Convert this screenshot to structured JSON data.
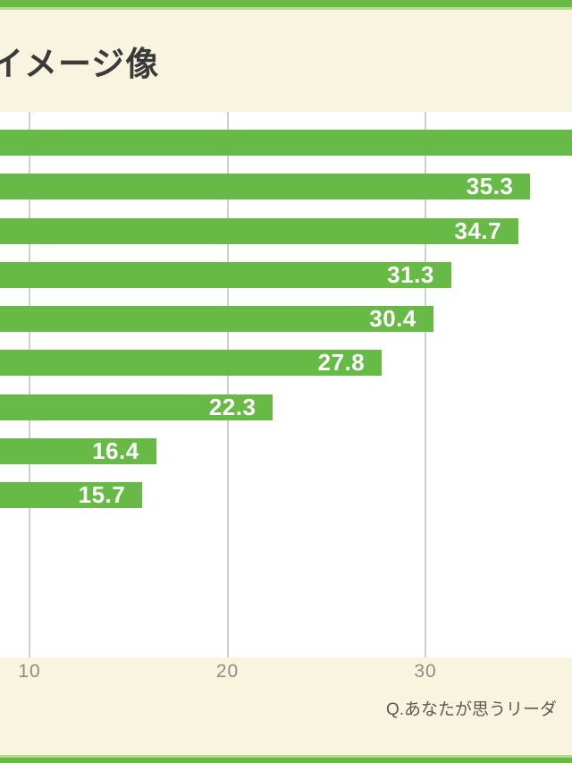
{
  "page": {
    "title": "イメージ像",
    "caption": "Q.あなたが思うリーダ",
    "colors": {
      "green": "#66ba45",
      "light_green": "#b7d98b",
      "cream": "#f9f4df",
      "plot_bg": "#ffffff",
      "grid": "#cfcfcf",
      "title_text": "#3a3a3a",
      "tick_text": "#8e8d86",
      "caption_text": "#5c5b54",
      "bar_label": "#ffffff"
    }
  },
  "chart_data": {
    "type": "bar",
    "orientation": "horizontal",
    "title": "イメージ像",
    "caption": "Q.あなたが思うリーダ",
    "grid": true,
    "x_ticks": [
      10,
      20,
      30
    ],
    "bars": [
      {
        "value": null,
        "label": "",
        "overflows_right": true,
        "note": "top bar extends past right edge, value label not visible"
      },
      {
        "value": 35.3,
        "label": "35.3"
      },
      {
        "value": 34.7,
        "label": "34.7"
      },
      {
        "value": 31.3,
        "label": "31.3"
      },
      {
        "value": 30.4,
        "label": "30.4"
      },
      {
        "value": 27.8,
        "label": "27.8"
      },
      {
        "value": 22.3,
        "label": "22.3"
      },
      {
        "value": 16.4,
        "label": "16.4"
      },
      {
        "value": 15.7,
        "label": "15.7"
      }
    ],
    "layout_hint": "category labels and value-axis origin cropped off left edge of image"
  }
}
